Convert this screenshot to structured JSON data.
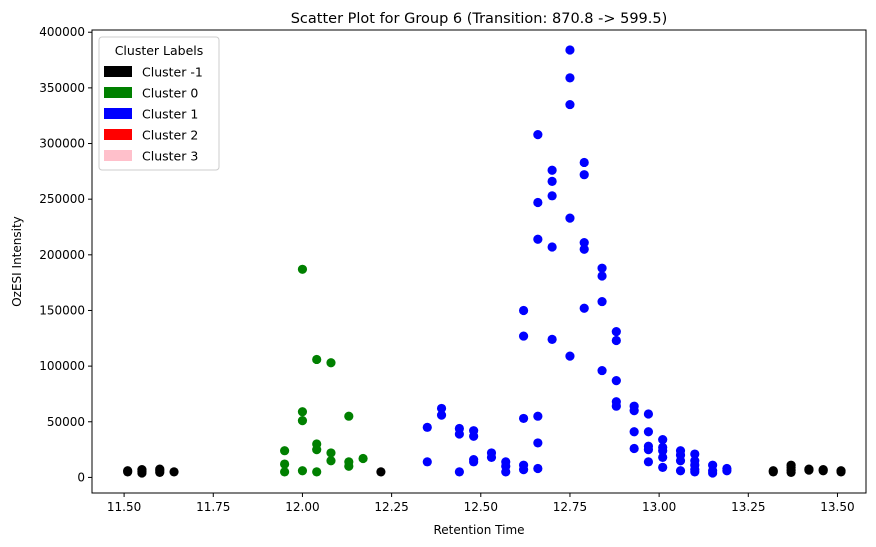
{
  "chart_data": {
    "type": "scatter",
    "title": "Scatter Plot for Group 6 (Transition: 870.8 -> 599.5)",
    "xlabel": "Retention Time",
    "ylabel": "OzESI Intensity",
    "xlim": [
      11.41,
      13.58
    ],
    "ylim": [
      -14000,
      402000
    ],
    "xticks": [
      "11.50",
      "11.75",
      "12.00",
      "12.25",
      "12.50",
      "12.75",
      "13.00",
      "13.25",
      "13.50"
    ],
    "yticks": [
      "0",
      "50000",
      "100000",
      "150000",
      "200000",
      "250000",
      "300000",
      "350000",
      "400000"
    ],
    "grid": false,
    "legend": {
      "title": "Cluster Labels",
      "placement": "top-left",
      "entries": [
        {
          "label": "Cluster -1",
          "color": "#000000"
        },
        {
          "label": "Cluster 0",
          "color": "#008000"
        },
        {
          "label": "Cluster 1",
          "color": "#0000ff"
        },
        {
          "label": "Cluster 2",
          "color": "#ff0000"
        },
        {
          "label": "Cluster 3",
          "color": "#ffc0cb"
        }
      ]
    },
    "series": [
      {
        "name": "Cluster -1",
        "color": "#000000",
        "points": [
          [
            11.51,
            5000
          ],
          [
            11.51,
            6000
          ],
          [
            11.55,
            4000
          ],
          [
            11.55,
            5500
          ],
          [
            11.55,
            7000
          ],
          [
            11.6,
            4500
          ],
          [
            11.6,
            6000
          ],
          [
            11.6,
            7500
          ],
          [
            11.64,
            5000
          ],
          [
            12.22,
            5000
          ],
          [
            13.32,
            5000
          ],
          [
            13.32,
            6000
          ],
          [
            13.37,
            4500
          ],
          [
            13.37,
            6500
          ],
          [
            13.37,
            9000
          ],
          [
            13.37,
            11000
          ],
          [
            13.42,
            6500
          ],
          [
            13.42,
            7500
          ],
          [
            13.46,
            6000
          ],
          [
            13.46,
            7000
          ],
          [
            13.51,
            5000
          ],
          [
            13.51,
            6000
          ]
        ]
      },
      {
        "name": "Cluster 0",
        "color": "#008000",
        "points": [
          [
            11.95,
            5000
          ],
          [
            11.95,
            12000
          ],
          [
            11.95,
            24000
          ],
          [
            12.0,
            187000
          ],
          [
            12.0,
            59000
          ],
          [
            12.0,
            51000
          ],
          [
            12.0,
            6000
          ],
          [
            12.04,
            106000
          ],
          [
            12.04,
            30000
          ],
          [
            12.04,
            25000
          ],
          [
            12.04,
            5000
          ],
          [
            12.08,
            103000
          ],
          [
            12.08,
            22000
          ],
          [
            12.08,
            15000
          ],
          [
            12.13,
            55000
          ],
          [
            12.13,
            14000
          ],
          [
            12.13,
            10000
          ],
          [
            12.17,
            17000
          ]
        ]
      },
      {
        "name": "Cluster 1",
        "color": "#0000ff",
        "points": [
          [
            12.35,
            45000
          ],
          [
            12.35,
            14000
          ],
          [
            12.39,
            62000
          ],
          [
            12.39,
            56000
          ],
          [
            12.44,
            44000
          ],
          [
            12.44,
            39000
          ],
          [
            12.44,
            5000
          ],
          [
            12.48,
            42000
          ],
          [
            12.48,
            37000
          ],
          [
            12.48,
            16000
          ],
          [
            12.48,
            14000
          ],
          [
            12.53,
            22000
          ],
          [
            12.53,
            18000
          ],
          [
            12.57,
            14000
          ],
          [
            12.57,
            10000
          ],
          [
            12.57,
            5000
          ],
          [
            12.62,
            150000
          ],
          [
            12.62,
            127000
          ],
          [
            12.62,
            53000
          ],
          [
            12.62,
            11000
          ],
          [
            12.62,
            7000
          ],
          [
            12.66,
            308000
          ],
          [
            12.66,
            247000
          ],
          [
            12.66,
            214000
          ],
          [
            12.66,
            55000
          ],
          [
            12.66,
            31000
          ],
          [
            12.66,
            8000
          ],
          [
            12.7,
            276000
          ],
          [
            12.7,
            266000
          ],
          [
            12.7,
            253000
          ],
          [
            12.7,
            207000
          ],
          [
            12.7,
            124000
          ],
          [
            12.75,
            384000
          ],
          [
            12.75,
            359000
          ],
          [
            12.75,
            335000
          ],
          [
            12.75,
            233000
          ],
          [
            12.75,
            109000
          ],
          [
            12.79,
            283000
          ],
          [
            12.79,
            272000
          ],
          [
            12.79,
            211000
          ],
          [
            12.79,
            205000
          ],
          [
            12.79,
            152000
          ],
          [
            12.84,
            188000
          ],
          [
            12.84,
            181000
          ],
          [
            12.84,
            158000
          ],
          [
            12.84,
            96000
          ],
          [
            12.88,
            131000
          ],
          [
            12.88,
            123000
          ],
          [
            12.88,
            87000
          ],
          [
            12.88,
            68000
          ],
          [
            12.88,
            64000
          ],
          [
            12.93,
            64000
          ],
          [
            12.93,
            60000
          ],
          [
            12.93,
            41000
          ],
          [
            12.93,
            26000
          ],
          [
            12.97,
            57000
          ],
          [
            12.97,
            41000
          ],
          [
            12.97,
            28000
          ],
          [
            12.97,
            25000
          ],
          [
            12.97,
            14000
          ],
          [
            13.01,
            34000
          ],
          [
            13.01,
            27000
          ],
          [
            13.01,
            24000
          ],
          [
            13.01,
            18000
          ],
          [
            13.01,
            9000
          ],
          [
            13.06,
            24000
          ],
          [
            13.06,
            20000
          ],
          [
            13.06,
            15000
          ],
          [
            13.06,
            6000
          ],
          [
            13.1,
            21000
          ],
          [
            13.1,
            15000
          ],
          [
            13.1,
            11000
          ],
          [
            13.1,
            7000
          ],
          [
            13.1,
            5000
          ],
          [
            13.15,
            11000
          ],
          [
            13.15,
            6000
          ],
          [
            13.15,
            4000
          ],
          [
            13.19,
            8000
          ],
          [
            13.19,
            6000
          ]
        ]
      }
    ]
  }
}
